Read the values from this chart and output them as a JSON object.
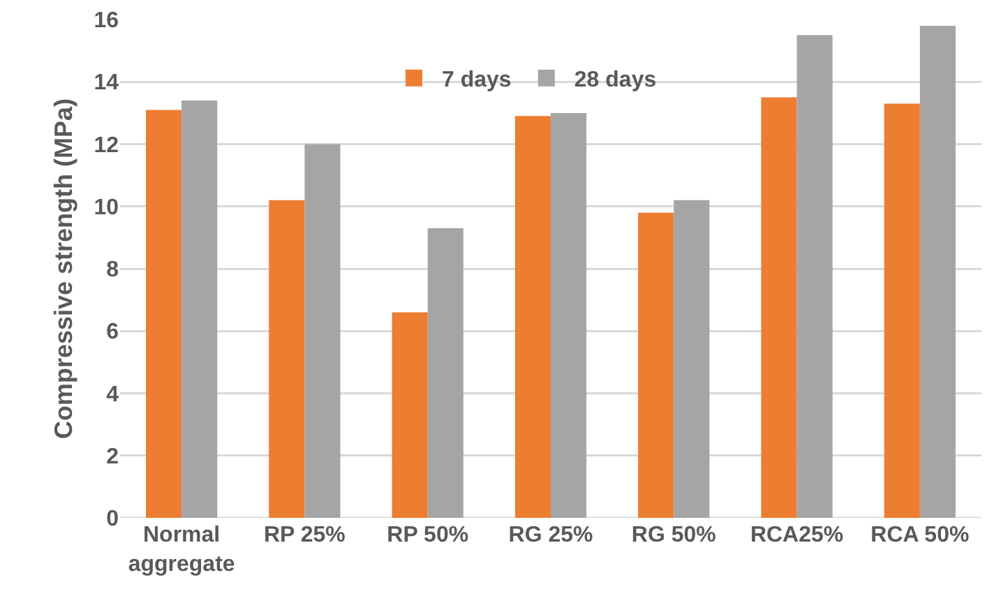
{
  "chart_data": {
    "type": "bar",
    "ylabel": "Compressive strength (MPa)",
    "categories": [
      "Normal aggregate",
      "RP 25%",
      "RP 50%",
      "RG 25%",
      "RG 50%",
      "RCA25%",
      "RCA 50%"
    ],
    "series": [
      {
        "name": "7 days",
        "color": "#ed7d31",
        "values": [
          13.1,
          10.2,
          6.6,
          12.9,
          9.8,
          13.5,
          13.3
        ]
      },
      {
        "name": "28 days",
        "color": "#a5a5a5",
        "values": [
          13.4,
          12.0,
          9.3,
          13.0,
          10.2,
          15.5,
          15.8
        ]
      }
    ],
    "ylim": [
      0,
      16
    ],
    "yticks": [
      0,
      2,
      4,
      6,
      8,
      10,
      12,
      14,
      16
    ],
    "grid": "y",
    "legend": "top"
  }
}
